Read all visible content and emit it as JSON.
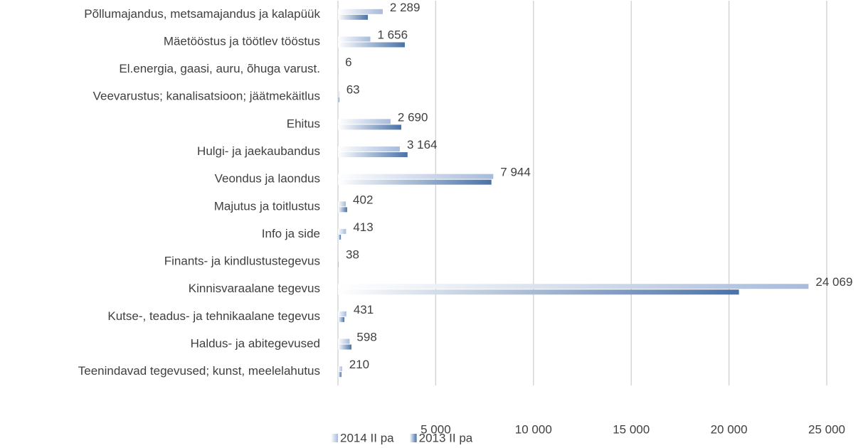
{
  "chart_data": {
    "type": "bar",
    "orientation": "horizontal",
    "categories": [
      "Põllumajandus, metsamajandus ja kalapüük",
      "Mäetööstus ja töötlev tööstus",
      "El.energia, gaasi, auru, õhuga varust.",
      "Veevarustus; kanalisatsioon; jäätmekäitlus",
      "Ehitus",
      "Hulgi- ja jaekaubandus",
      "Veondus ja laondus",
      "Majutus ja toitlustus",
      "Info ja side",
      "Finants- ja kindlustustegevus",
      "Kinnisvaraalane tegevus",
      "Kutse-, teadus- ja tehnikaalane tegevus",
      "Haldus- ja abitegevused",
      "Teenindavad tegevused; kunst, meelelahutus"
    ],
    "series": [
      {
        "name": "2014 II pa",
        "color": "#a7bbdc",
        "values": [
          2289,
          1656,
          6,
          63,
          2690,
          3164,
          7944,
          402,
          413,
          38,
          24069,
          431,
          598,
          210
        ],
        "value_labels": [
          "2 289",
          "1 656",
          "6",
          "63",
          "2 690",
          "3 164",
          "7 944",
          "402",
          "413",
          "38",
          "24 069",
          "431",
          "598",
          "210"
        ]
      },
      {
        "name": "2013 II pa",
        "color": "#4a72a8",
        "values": [
          1530,
          3420,
          5,
          70,
          3240,
          3560,
          7850,
          470,
          150,
          30,
          20510,
          330,
          690,
          180
        ]
      }
    ],
    "xlim": [
      0,
      25000
    ],
    "xticks": [
      {
        "value": 5000,
        "label": "5 000"
      },
      {
        "value": 10000,
        "label": "10 000"
      },
      {
        "value": 15000,
        "label": "15 000"
      },
      {
        "value": 20000,
        "label": "20 000"
      },
      {
        "value": 25000,
        "label": "25 000"
      }
    ],
    "grid": true,
    "legend": "bottom"
  }
}
